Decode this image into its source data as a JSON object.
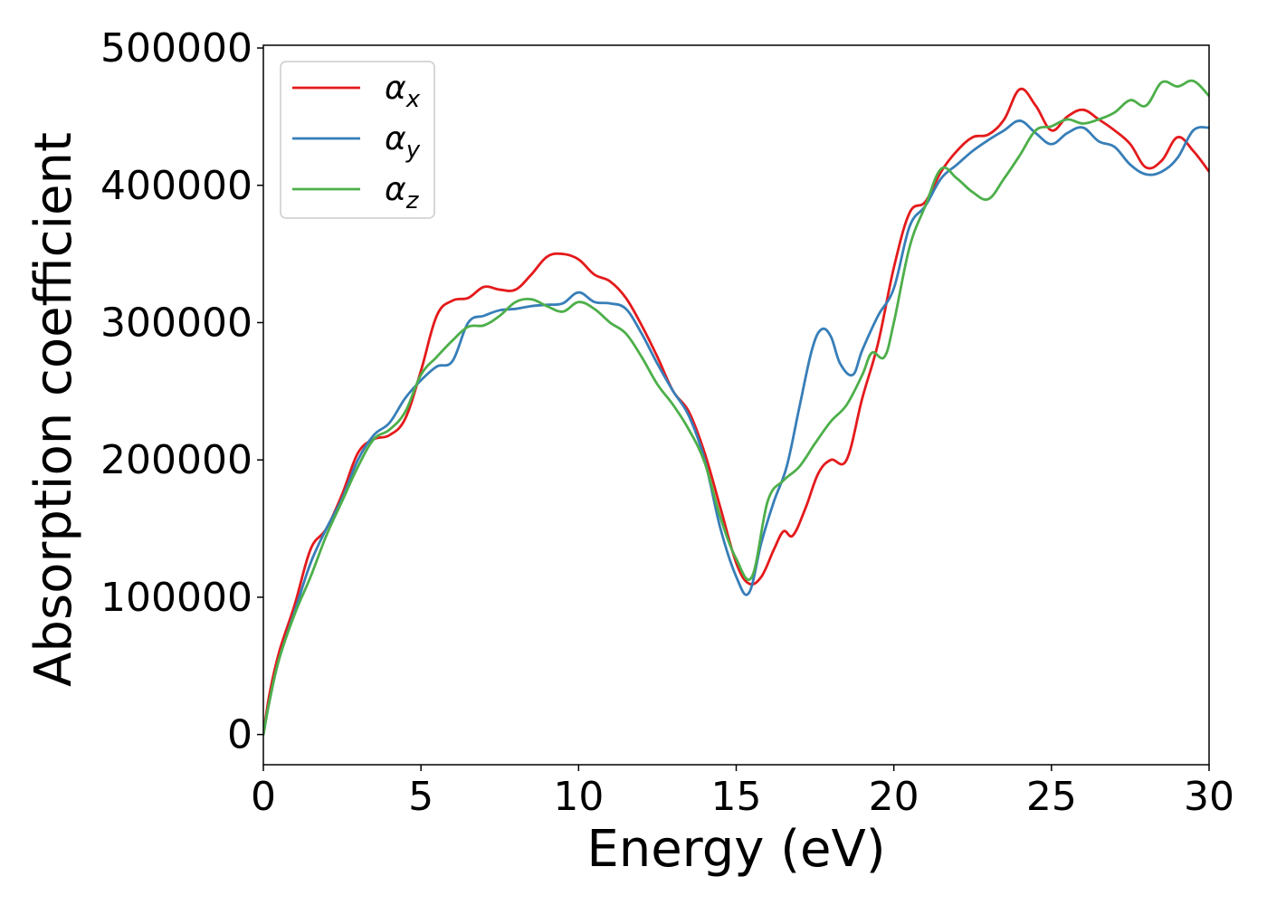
{
  "chart_data": {
    "type": "line",
    "xlabel": "Energy (eV)",
    "ylabel": "Absorption coefficient",
    "xlim": [
      0,
      30
    ],
    "ylim": [
      -22000,
      502000
    ],
    "xticks": [
      0,
      5,
      10,
      15,
      20,
      25,
      30
    ],
    "yticks": [
      0,
      100000,
      200000,
      300000,
      400000,
      500000
    ],
    "xtick_labels": [
      "0",
      "5",
      "10",
      "15",
      "20",
      "25",
      "30"
    ],
    "ytick_labels": [
      "0",
      "100000",
      "200000",
      "300000",
      "400000",
      "500000"
    ],
    "grid": false,
    "legend_position": "top-left",
    "series": [
      {
        "name": "α_x",
        "legend_base": "α",
        "legend_sub": "x",
        "color": "#e41a1c",
        "x": [
          0,
          0.2,
          0.5,
          1.0,
          1.5,
          2.0,
          2.5,
          3.0,
          3.5,
          4.0,
          4.5,
          5.0,
          5.5,
          6.0,
          6.5,
          7.0,
          7.5,
          8.0,
          8.5,
          9.0,
          9.5,
          10.0,
          10.5,
          11.0,
          11.5,
          12.0,
          12.5,
          13.0,
          13.5,
          14.0,
          14.5,
          15.0,
          15.4,
          15.8,
          16.2,
          16.5,
          16.8,
          17.2,
          17.6,
          18.0,
          18.5,
          19.0,
          19.5,
          20.0,
          20.5,
          21.0,
          21.5,
          22.0,
          22.5,
          23.0,
          23.5,
          24.0,
          24.5,
          25.0,
          25.5,
          26.0,
          26.5,
          27.0,
          27.5,
          28.0,
          28.5,
          29.0,
          29.5,
          30.0
        ],
        "y": [
          0,
          30000,
          60000,
          95000,
          135000,
          150000,
          175000,
          205000,
          215000,
          218000,
          230000,
          265000,
          305000,
          316000,
          318000,
          326000,
          324000,
          324000,
          335000,
          348000,
          350000,
          346000,
          335000,
          330000,
          318000,
          298000,
          275000,
          250000,
          235000,
          205000,
          165000,
          125000,
          110000,
          115000,
          135000,
          148000,
          145000,
          165000,
          190000,
          200000,
          200000,
          245000,
          285000,
          340000,
          380000,
          388000,
          410000,
          425000,
          435000,
          437000,
          448000,
          470000,
          458000,
          440000,
          450000,
          455000,
          448000,
          440000,
          430000,
          413000,
          418000,
          435000,
          425000,
          410000
        ]
      },
      {
        "name": "α_y",
        "legend_base": "α",
        "legend_sub": "y",
        "color": "#377eb8",
        "x": [
          0,
          0.2,
          0.5,
          1.0,
          1.5,
          2.0,
          2.5,
          3.0,
          3.5,
          4.0,
          4.5,
          5.0,
          5.5,
          6.0,
          6.5,
          7.0,
          7.5,
          8.0,
          8.5,
          9.0,
          9.5,
          10.0,
          10.5,
          11.0,
          11.5,
          12.0,
          12.5,
          13.0,
          13.5,
          14.0,
          14.5,
          15.0,
          15.4,
          15.8,
          16.2,
          16.6,
          17.0,
          17.4,
          17.7,
          18.0,
          18.3,
          18.7,
          19.0,
          19.5,
          20.0,
          20.5,
          21.0,
          21.5,
          22.0,
          22.5,
          23.0,
          23.5,
          24.0,
          24.5,
          25.0,
          25.5,
          26.0,
          26.5,
          27.0,
          27.5,
          28.0,
          28.5,
          29.0,
          29.5,
          30.0
        ],
        "y": [
          0,
          25000,
          55000,
          90000,
          125000,
          150000,
          172000,
          200000,
          218000,
          227000,
          245000,
          258000,
          268000,
          272000,
          300000,
          305000,
          309000,
          310000,
          312000,
          313000,
          314000,
          322000,
          315000,
          314000,
          310000,
          292000,
          270000,
          250000,
          232000,
          200000,
          150000,
          115000,
          103000,
          140000,
          170000,
          195000,
          238000,
          280000,
          295000,
          290000,
          270000,
          262000,
          280000,
          305000,
          325000,
          370000,
          385000,
          405000,
          415000,
          425000,
          433000,
          440000,
          447000,
          438000,
          430000,
          438000,
          442000,
          432000,
          428000,
          415000,
          408000,
          410000,
          420000,
          440000,
          442000
        ]
      },
      {
        "name": "α_z",
        "legend_base": "α",
        "legend_sub": "z",
        "color": "#4daf4a",
        "x": [
          0,
          0.2,
          0.5,
          1.0,
          1.5,
          2.0,
          2.5,
          3.0,
          3.5,
          4.0,
          4.5,
          5.0,
          5.5,
          6.0,
          6.5,
          7.0,
          7.5,
          8.0,
          8.5,
          9.0,
          9.5,
          10.0,
          10.5,
          11.0,
          11.5,
          12.0,
          12.5,
          13.0,
          13.5,
          14.0,
          14.5,
          15.0,
          15.5,
          16.0,
          16.5,
          17.0,
          17.5,
          18.0,
          18.5,
          19.0,
          19.3,
          19.7,
          20.0,
          20.5,
          21.0,
          21.5,
          22.0,
          22.5,
          23.0,
          23.5,
          24.0,
          24.5,
          25.0,
          25.5,
          26.0,
          26.5,
          27.0,
          27.5,
          28.0,
          28.5,
          29.0,
          29.5,
          30.0
        ],
        "y": [
          0,
          25000,
          55000,
          88000,
          115000,
          145000,
          170000,
          195000,
          215000,
          222000,
          235000,
          262000,
          275000,
          287000,
          297000,
          298000,
          305000,
          315000,
          317000,
          312000,
          308000,
          315000,
          310000,
          300000,
          292000,
          275000,
          255000,
          240000,
          222000,
          198000,
          158000,
          128000,
          115000,
          170000,
          185000,
          195000,
          212000,
          228000,
          240000,
          262000,
          278000,
          275000,
          300000,
          355000,
          385000,
          412000,
          405000,
          395000,
          390000,
          405000,
          422000,
          440000,
          443000,
          448000,
          445000,
          448000,
          453000,
          462000,
          458000,
          475000,
          472000,
          476000,
          465000
        ]
      }
    ]
  }
}
